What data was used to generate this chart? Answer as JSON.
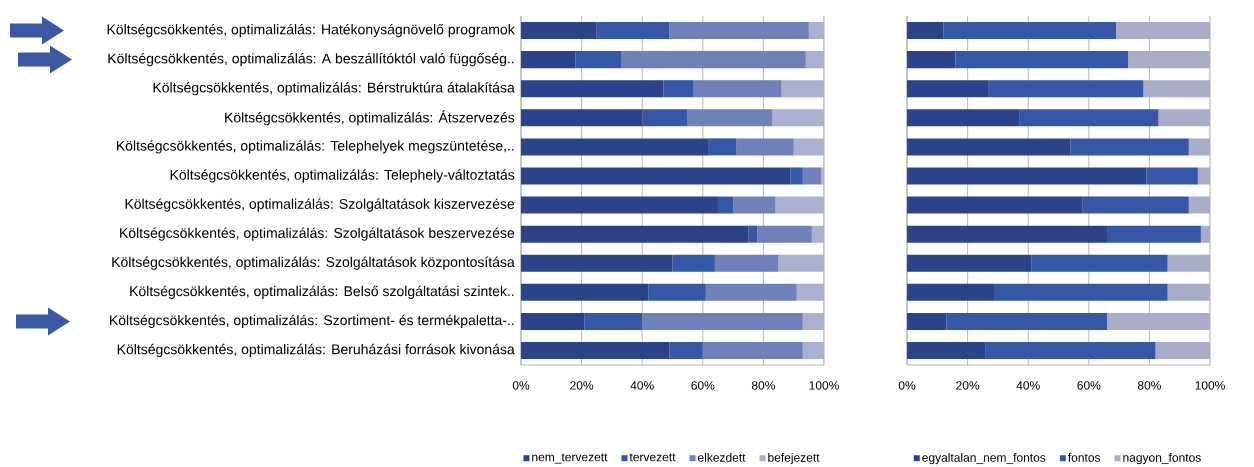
{
  "chart_data": [
    {
      "type": "bar",
      "orientation": "horizontal",
      "stacked": true,
      "grid": "x",
      "legend": "bottom",
      "categories": [
        "Költségcsökkentés, optimalizálás: Hatékonyságnövelő programok",
        "Költségcsökkentés, optimalizálás: A beszállítóktól való függőség..",
        "Költségcsökkentés, optimalizálás: Bérstruktúra átalakítása",
        "Költségcsökkentés, optimalizálás: Átszervezés",
        "Költségcsökkentés, optimalizálás: Telephelyek megszüntetése,..",
        "Költségcsökkentés, optimalizálás: Telephely-változtatás",
        "Költségcsökkentés, optimalizálás: Szolgáltatások kiszervezése",
        "Költségcsökkentés, optimalizálás: Szolgáltatások beszervezése",
        "Költségcsökkentés, optimalizálás: Szolgáltatások központosítása",
        "Költségcsökkentés, optimalizálás: Belső szolgáltatási szintek..",
        "Költségcsökkentés, optimalizálás: Szortiment- és termékpaletta-..",
        "Költségcsökkentés, optimalizálás: Beruházási források kivonása"
      ],
      "series": [
        {
          "name": "nem_tervezett",
          "color": "#2b4389",
          "values": [
            25,
            18,
            47,
            40,
            62,
            89,
            65,
            75,
            50,
            42,
            21,
            49
          ]
        },
        {
          "name": "tervezett",
          "color": "#3656a6",
          "values": [
            24,
            15,
            10,
            15,
            9,
            4,
            5,
            3,
            14,
            19,
            19,
            11
          ]
        },
        {
          "name": "elkezdett",
          "color": "#7080b8",
          "values": [
            46,
            61,
            29,
            28,
            19,
            6,
            14,
            18,
            21,
            30,
            53,
            33
          ]
        },
        {
          "name": "befejezett",
          "color": "#a9b0d0",
          "values": [
            5,
            6,
            14,
            17,
            10,
            1,
            16,
            4,
            15,
            9,
            7,
            7
          ]
        }
      ],
      "xlim": [
        0,
        100
      ],
      "xticks": [
        {
          "value": 0,
          "label": "0%"
        },
        {
          "value": 20,
          "label": "20%"
        },
        {
          "value": 40,
          "label": "40%"
        },
        {
          "value": 60,
          "label": "60%"
        },
        {
          "value": 80,
          "label": "80%"
        },
        {
          "value": 100,
          "label": "100%"
        }
      ]
    },
    {
      "type": "bar",
      "orientation": "horizontal",
      "stacked": true,
      "grid": "x",
      "legend": "bottom",
      "tick_labels": "x",
      "categories": [
        null,
        null,
        null,
        null,
        null,
        null,
        null,
        null,
        null,
        null,
        null,
        null
      ],
      "series": [
        {
          "name": "egyaltalan_nem_fontos",
          "color": "#2b4389",
          "values": [
            12,
            16,
            27,
            37,
            54,
            79,
            58,
            66,
            41,
            29,
            13,
            26
          ]
        },
        {
          "name": "fontos",
          "color": "#3656a6",
          "values": [
            57,
            57,
            51,
            46,
            39,
            17,
            35,
            31,
            45,
            57,
            53,
            56
          ]
        },
        {
          "name": "nagyon_fontos",
          "color": "#a9acc8",
          "values": [
            31,
            27,
            22,
            17,
            7,
            4,
            7,
            3,
            14,
            14,
            34,
            18
          ]
        }
      ],
      "xlim": [
        0,
        100
      ],
      "xticks": [
        {
          "value": 0,
          "label": "0%"
        },
        {
          "value": 20,
          "label": "20%"
        },
        {
          "value": 40,
          "label": "40%"
        },
        {
          "value": 60,
          "label": "60%"
        },
        {
          "value": 80,
          "label": "80%"
        },
        {
          "value": 100,
          "label": "100%"
        }
      ]
    }
  ]
}
